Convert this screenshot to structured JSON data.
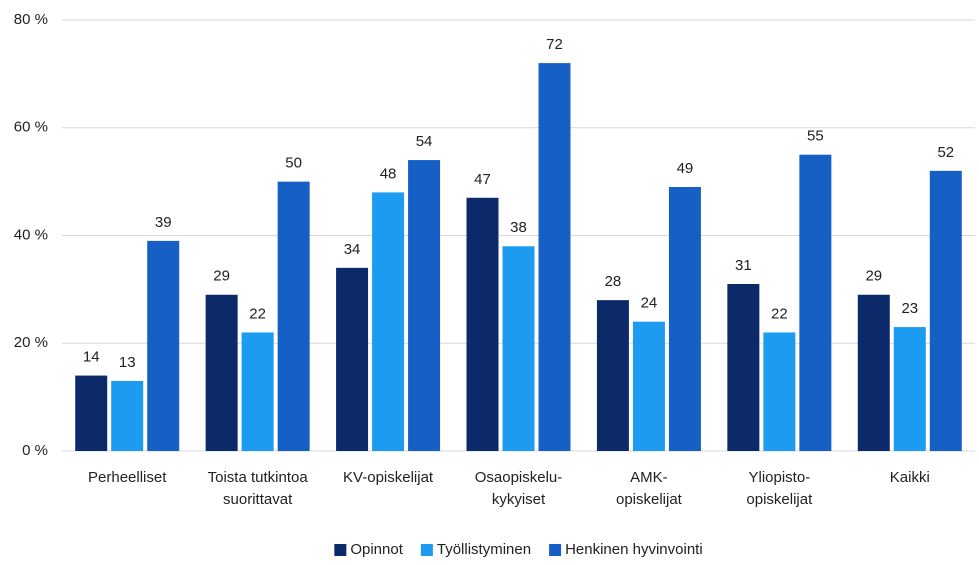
{
  "chart_data": {
    "type": "bar",
    "categories": [
      "Perheelliset",
      "Toista tutkintoa\nsuorittavat",
      "KV-opiskelijat",
      "Osaopiskelu-\nkykyiset",
      "AMK-\nopiskelijat",
      "Yliopisto-\nopiskelijat",
      "Kaikki"
    ],
    "series": [
      {
        "name": "Opinnot",
        "color": "#0c2a6a",
        "values": [
          14,
          29,
          34,
          47,
          28,
          31,
          29
        ]
      },
      {
        "name": "Työllistyminen",
        "color": "#1d9bf0",
        "values": [
          13,
          22,
          48,
          38,
          24,
          22,
          23
        ]
      },
      {
        "name": "Henkinen hyvinvointi",
        "color": "#165fc5",
        "values": [
          39,
          50,
          54,
          72,
          49,
          55,
          52
        ]
      }
    ],
    "ylim": [
      0,
      80
    ],
    "yticks": [
      {
        "value": 0,
        "label": "0 %"
      },
      {
        "value": 20,
        "label": "20 %"
      },
      {
        "value": 40,
        "label": "40 %"
      },
      {
        "value": 60,
        "label": "60 %"
      },
      {
        "value": 80,
        "label": "80 %"
      }
    ],
    "grid": true,
    "legend": "bottom"
  }
}
